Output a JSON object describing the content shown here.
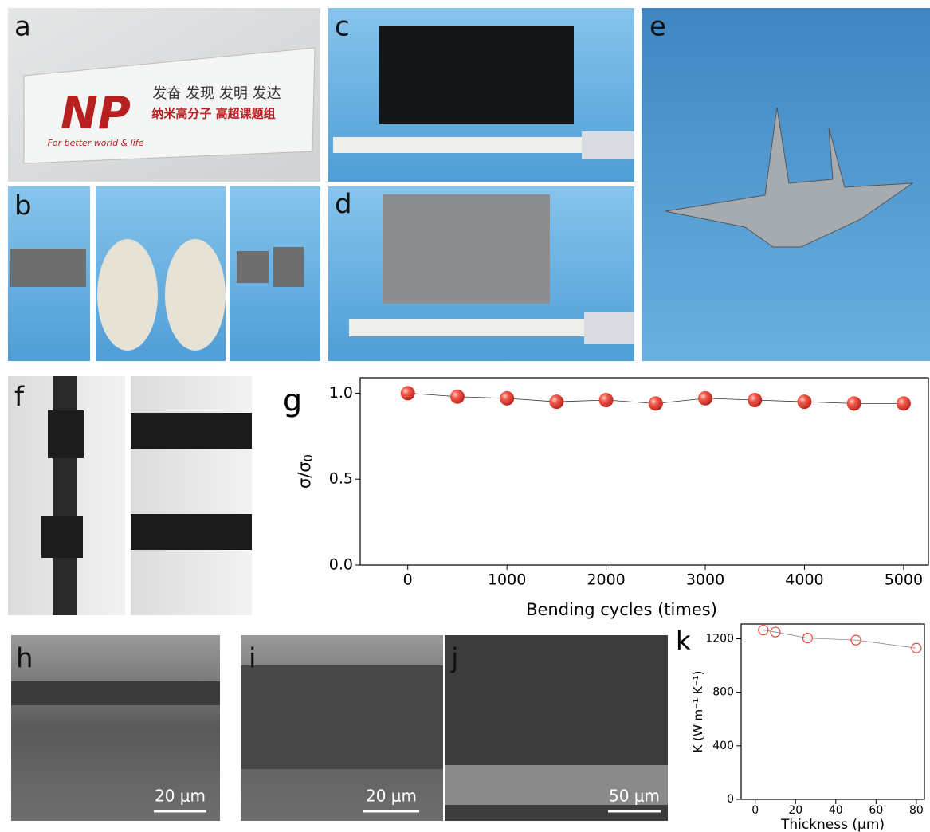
{
  "panel_labels": [
    "a",
    "b",
    "c",
    "d",
    "e",
    "f",
    "h",
    "i",
    "j"
  ],
  "photo_text": {
    "logo": "NP",
    "slogan": "发奋 发现 发明 发达",
    "group": "纳米高分子  高超课题组",
    "motto": "For better world & life"
  },
  "scale_bars": [
    "20 μm",
    "20 μm",
    "50 μm"
  ],
  "chart_data": [
    {
      "type": "line",
      "title": "g",
      "x_label": "Bending cycles (times)",
      "y_label": "σ/σ",
      "y_label_subscript": "0",
      "x": [
        0,
        500,
        1000,
        1500,
        2000,
        2500,
        3000,
        3500,
        4000,
        4500,
        5000
      ],
      "values": [
        1.0,
        0.98,
        0.97,
        0.95,
        0.96,
        0.94,
        0.97,
        0.96,
        0.95,
        0.94,
        0.94
      ],
      "color": "#e8463c",
      "marker": "sphere",
      "xlim": [
        -480,
        5250
      ],
      "xticks": [
        0,
        1000,
        2000,
        3000,
        4000,
        5000
      ],
      "ylim": [
        0,
        1.09
      ],
      "yticks": [
        {
          "value": 0,
          "label": "0.0"
        },
        {
          "value": 0.5,
          "label": "0.5"
        },
        {
          "value": 1,
          "label": "1.0"
        }
      ]
    },
    {
      "type": "line",
      "title": "k",
      "x_label": "Thickness (μm)",
      "y_label": "K (W m⁻¹ K⁻¹)",
      "x": [
        4,
        10,
        26,
        50,
        80
      ],
      "values": [
        1265,
        1250,
        1205,
        1190,
        1130
      ],
      "color": "#e8463c",
      "marker": "open-circle",
      "xlim": [
        -7,
        84
      ],
      "xticks": [
        0,
        20,
        40,
        60,
        80
      ],
      "ylim": [
        0,
        1310
      ],
      "yticks": [
        0,
        400,
        800,
        1200
      ]
    }
  ]
}
